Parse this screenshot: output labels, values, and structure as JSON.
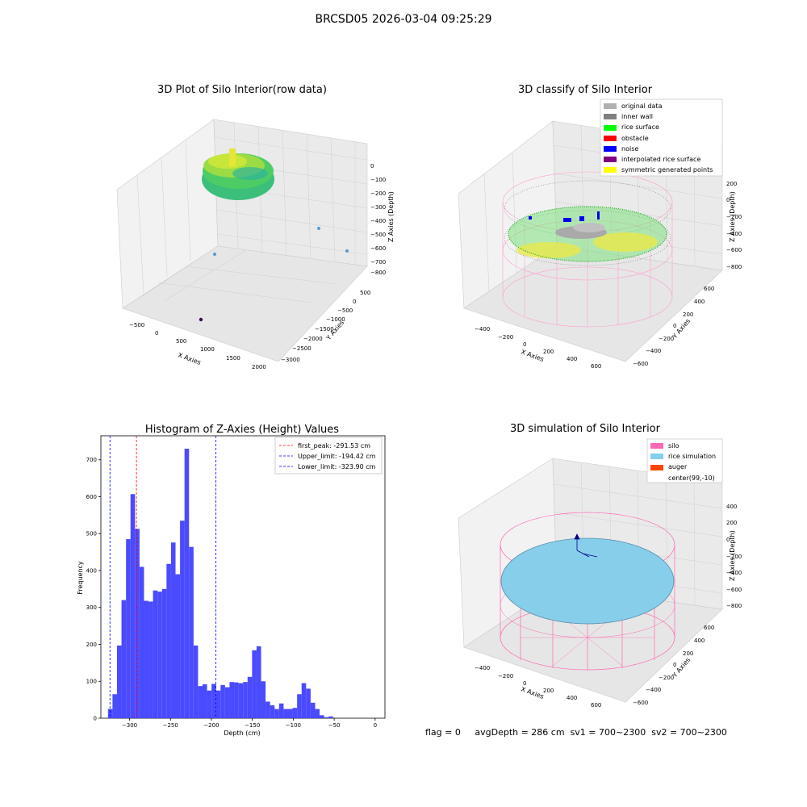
{
  "suptitle": "BRCSD05 2026-03-04 09:25:29",
  "panel1": {
    "title": "3D Plot of Silo Interior(row data)",
    "xlabel": "X Axies",
    "ylabel": "Y Axies",
    "zlabel": "Z Axies (Depth)",
    "xticks": [
      "−500",
      "0",
      "500",
      "1000",
      "1500",
      "2000"
    ],
    "yticks": [
      "500",
      "0",
      "−500",
      "−1000",
      "−1500",
      "−2000",
      "−2500",
      "−3000"
    ],
    "zticks": [
      "0",
      "−100",
      "−200",
      "−300",
      "−400",
      "−500",
      "−600",
      "−700",
      "−800"
    ]
  },
  "panel2": {
    "title": "3D classify of Silo Interior",
    "xlabel": "X Axies",
    "ylabel": "Y Axies",
    "zlabel": "Z Axies (Depth)",
    "xticks": [
      "−400",
      "−200",
      "0",
      "200",
      "400",
      "600"
    ],
    "yticks": [
      "600",
      "400",
      "200",
      "0",
      "−200",
      "−400",
      "−600"
    ],
    "zticks": [
      "200",
      "0",
      "−200",
      "−400",
      "−600",
      "−800"
    ],
    "legend": [
      {
        "label": "original data",
        "color": "#b0b0b0"
      },
      {
        "label": "inner wall",
        "color": "#808080"
      },
      {
        "label": "rice surface",
        "color": "#00ff00"
      },
      {
        "label": "obstacle",
        "color": "#ff0000"
      },
      {
        "label": "noise",
        "color": "#0000ff"
      },
      {
        "label": "interpolated rice surface",
        "color": "#800080"
      },
      {
        "label": "symmetric generated points",
        "color": "#ffff00"
      }
    ]
  },
  "panel4": {
    "title": "3D simulation of Silo Interior",
    "xlabel": "X Axies",
    "ylabel": "Y Axies",
    "zlabel": "Z Axies (Depth)",
    "xticks": [
      "−400",
      "−200",
      "0",
      "200",
      "400",
      "600"
    ],
    "yticks": [
      "600",
      "400",
      "200",
      "0",
      "−200",
      "−400",
      "−600"
    ],
    "zticks": [
      "400",
      "200",
      "0",
      "−200",
      "−400",
      "−600",
      "−800"
    ],
    "legend": [
      {
        "label": "silo",
        "color": "#ff69b4"
      },
      {
        "label": "rice simulation",
        "color": "#87ceeb"
      },
      {
        "label": "auger",
        "color": "#ff4500"
      },
      {
        "label": "center(99,-10)",
        "color": ""
      }
    ]
  },
  "footer": {
    "flag": "flag = 0",
    "avg": "avgDepth = 286 cm",
    "sv1": "sv1 = 700~2300",
    "sv2": "sv2 = 700~2300"
  },
  "chart_data": [
    {
      "type": "bar",
      "title": "Histogram of Z-Axies (Height) Values",
      "xlabel": "Depth (cm)",
      "ylabel": "Frequency",
      "xlim": [
        -335,
        12
      ],
      "ylim": [
        0,
        765
      ],
      "x_ticks": [
        -300,
        -250,
        -200,
        -150,
        -100,
        -50,
        0
      ],
      "x_tick_labels": [
        "−300",
        "−250",
        "−200",
        "−150",
        "−100",
        "−50",
        "0"
      ],
      "y_ticks": [
        0,
        100,
        200,
        300,
        400,
        500,
        600,
        700
      ],
      "bar_color": "#4a4aff",
      "bin_width": 5.5,
      "bin_start": -326.3,
      "values": [
        25,
        65,
        197,
        320,
        485,
        607,
        513,
        410,
        318,
        316,
        346,
        343,
        350,
        418,
        476,
        390,
        535,
        730,
        464,
        197,
        87,
        92,
        75,
        93,
        75,
        90,
        84,
        98,
        97,
        95,
        98,
        112,
        184,
        195,
        100,
        45,
        35,
        25,
        40,
        25,
        25,
        28,
        65,
        95,
        80,
        42,
        25,
        8,
        3,
        5
      ],
      "vlines": [
        {
          "label": "first_peak: -291.53 cm",
          "x": -291.53,
          "color": "#ff0000"
        },
        {
          "label": "Upper_limit: -194.42 cm",
          "x": -194.42,
          "color": "#0000ff"
        },
        {
          "label": "Lower_limit: -323.90 cm",
          "x": -323.9,
          "color": "#0000ff"
        }
      ],
      "legend_position": "top-right"
    }
  ]
}
